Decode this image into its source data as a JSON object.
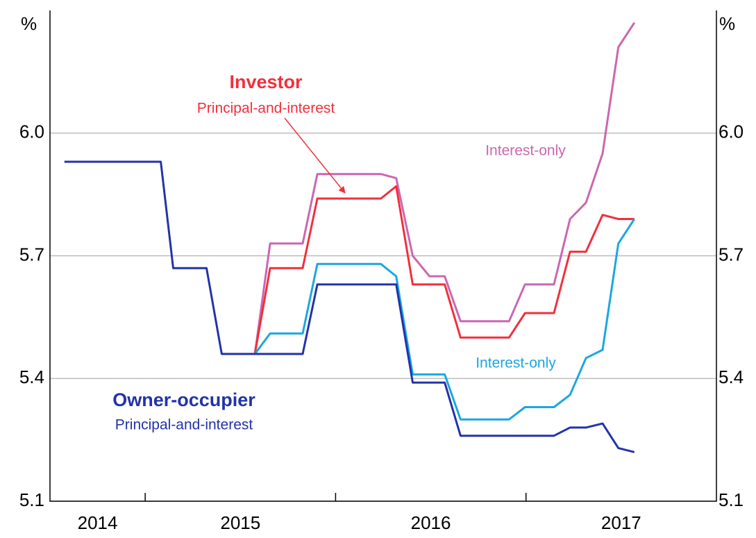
{
  "chart_data": {
    "type": "line",
    "y_unit": "%",
    "xlim": [
      2014.5,
      2018.0
    ],
    "xticks": [
      2015,
      2016,
      2017
    ],
    "xlabels": [
      {
        "value": 2014.75,
        "label": "2014"
      },
      {
        "value": 2015.5,
        "label": "2015"
      },
      {
        "value": 2016.5,
        "label": "2016"
      },
      {
        "value": 2017.5,
        "label": "2017"
      }
    ],
    "ylim": [
      5.1,
      6.3
    ],
    "yticks": [
      5.1,
      5.4,
      5.7,
      {
        "value": 6.0,
        "label": "6.0"
      }
    ],
    "grid": true,
    "x": [
      2014.576,
      2015.082,
      2015.147,
      2015.322,
      2015.402,
      2015.576,
      2015.656,
      2015.827,
      2015.904,
      2016.238,
      2016.318,
      2016.405,
      2016.493,
      2016.573,
      2016.656,
      2016.911,
      2016.995,
      2017.147,
      2017.231,
      2017.315,
      2017.402,
      2017.485,
      2017.569
    ],
    "series": [
      {
        "color": "#cc66b0",
        "values": [
          null,
          null,
          null,
          null,
          null,
          5.46,
          5.73,
          5.73,
          5.9,
          5.9,
          5.89,
          5.7,
          5.65,
          5.65,
          5.54,
          5.54,
          5.63,
          5.63,
          5.79,
          5.83,
          5.95,
          6.21,
          6.27
        ]
      },
      {
        "color": "#f0303c",
        "values": [
          null,
          null,
          null,
          null,
          null,
          5.46,
          5.67,
          5.67,
          5.84,
          5.84,
          5.87,
          5.63,
          5.63,
          5.63,
          5.5,
          5.5,
          5.56,
          5.56,
          5.71,
          5.71,
          5.8,
          5.79,
          5.79
        ]
      },
      {
        "color": "#1aa7e0",
        "values": [
          null,
          null,
          null,
          null,
          null,
          5.46,
          5.51,
          5.51,
          5.68,
          5.68,
          5.65,
          5.41,
          5.41,
          5.41,
          5.3,
          5.3,
          5.33,
          5.33,
          5.36,
          5.45,
          5.47,
          5.73,
          5.79
        ]
      },
      {
        "color": "#2233a8",
        "values": [
          5.93,
          5.93,
          5.67,
          5.67,
          5.46,
          5.46,
          5.46,
          5.46,
          5.63,
          5.63,
          5.63,
          5.39,
          5.39,
          5.39,
          5.26,
          5.26,
          5.26,
          5.26,
          5.28,
          5.28,
          5.29,
          5.23,
          5.22
        ]
      }
    ],
    "annotations": [
      "Investor",
      "Principal-and-interest",
      "Interest-only",
      "Interest-only",
      "Owner-occupier",
      "Principal-and-interest"
    ]
  }
}
